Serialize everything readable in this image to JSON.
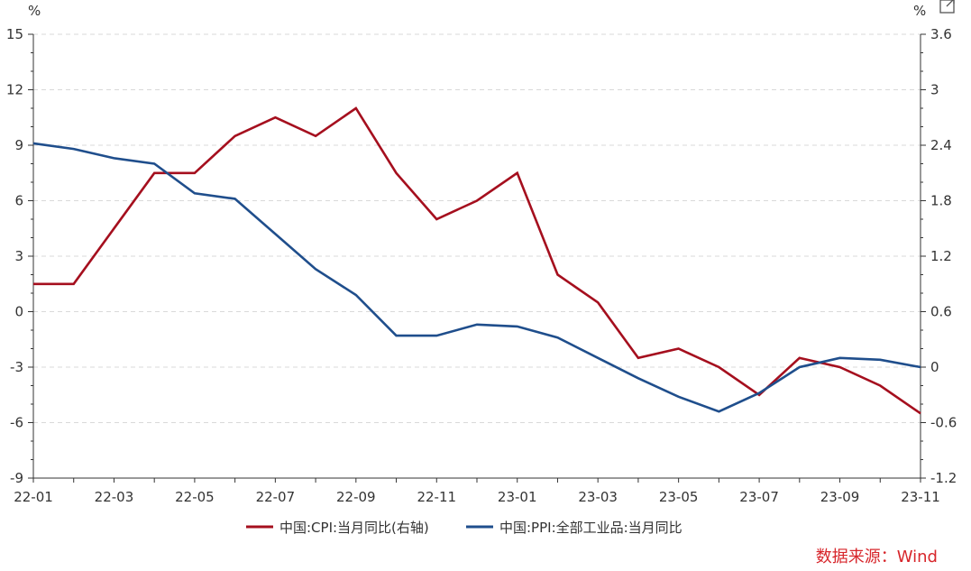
{
  "chart_data": {
    "type": "line",
    "x": [
      "22-01",
      "22-02",
      "22-03",
      "22-04",
      "22-05",
      "22-06",
      "22-07",
      "22-08",
      "22-09",
      "22-10",
      "22-11",
      "22-12",
      "23-01",
      "23-02",
      "23-03",
      "23-04",
      "23-05",
      "23-06",
      "23-07",
      "23-08",
      "23-09",
      "23-10",
      "23-11"
    ],
    "x_tick_labels": [
      "22-01",
      "22-03",
      "22-05",
      "22-07",
      "22-09",
      "22-11",
      "23-01",
      "23-03",
      "23-05",
      "23-07",
      "23-09",
      "23-11"
    ],
    "left_axis": {
      "unit": "%",
      "ylim": [
        -9,
        15
      ],
      "ticks": [
        "15",
        "12",
        "9",
        "6",
        "3",
        "0",
        "-3",
        "-6",
        "-9"
      ]
    },
    "right_axis": {
      "unit": "%",
      "ylim": [
        -1.2,
        3.6
      ],
      "ticks": [
        "3.6",
        "3",
        "2.4",
        "1.8",
        "1.2",
        "0.6",
        "0",
        "-0.6",
        "-1.2"
      ]
    },
    "grid": "horizontal dashed",
    "legend_position": "bottom",
    "series": [
      {
        "name": "中国:CPI:当月同比(右轴)",
        "axis": "right",
        "color": "#a50f1e",
        "values": [
          0.9,
          0.9,
          1.5,
          2.1,
          2.1,
          2.5,
          2.7,
          2.5,
          2.8,
          2.1,
          1.6,
          1.8,
          2.1,
          1.0,
          0.7,
          0.1,
          0.2,
          0.0,
          -0.3,
          0.1,
          0.0,
          -0.2,
          -0.5
        ]
      },
      {
        "name": "中国:PPI:全部工业品:当月同比",
        "axis": "left",
        "color": "#1f4e8c",
        "values": [
          9.1,
          8.8,
          8.3,
          8.0,
          6.4,
          6.1,
          4.2,
          2.3,
          0.9,
          -1.3,
          -1.3,
          -0.7,
          -0.8,
          -1.4,
          -2.5,
          -3.6,
          -4.6,
          -5.4,
          -4.4,
          -3.0,
          -2.5,
          -2.6,
          -3.0
        ]
      }
    ],
    "source_note": "数据来源：Wind"
  },
  "colors": {
    "cpi": "#a50f1e",
    "ppi": "#1f4e8c",
    "source": "#d7262b",
    "grid": "#d9d9d9"
  },
  "icons": {
    "export": "external-link-icon"
  }
}
